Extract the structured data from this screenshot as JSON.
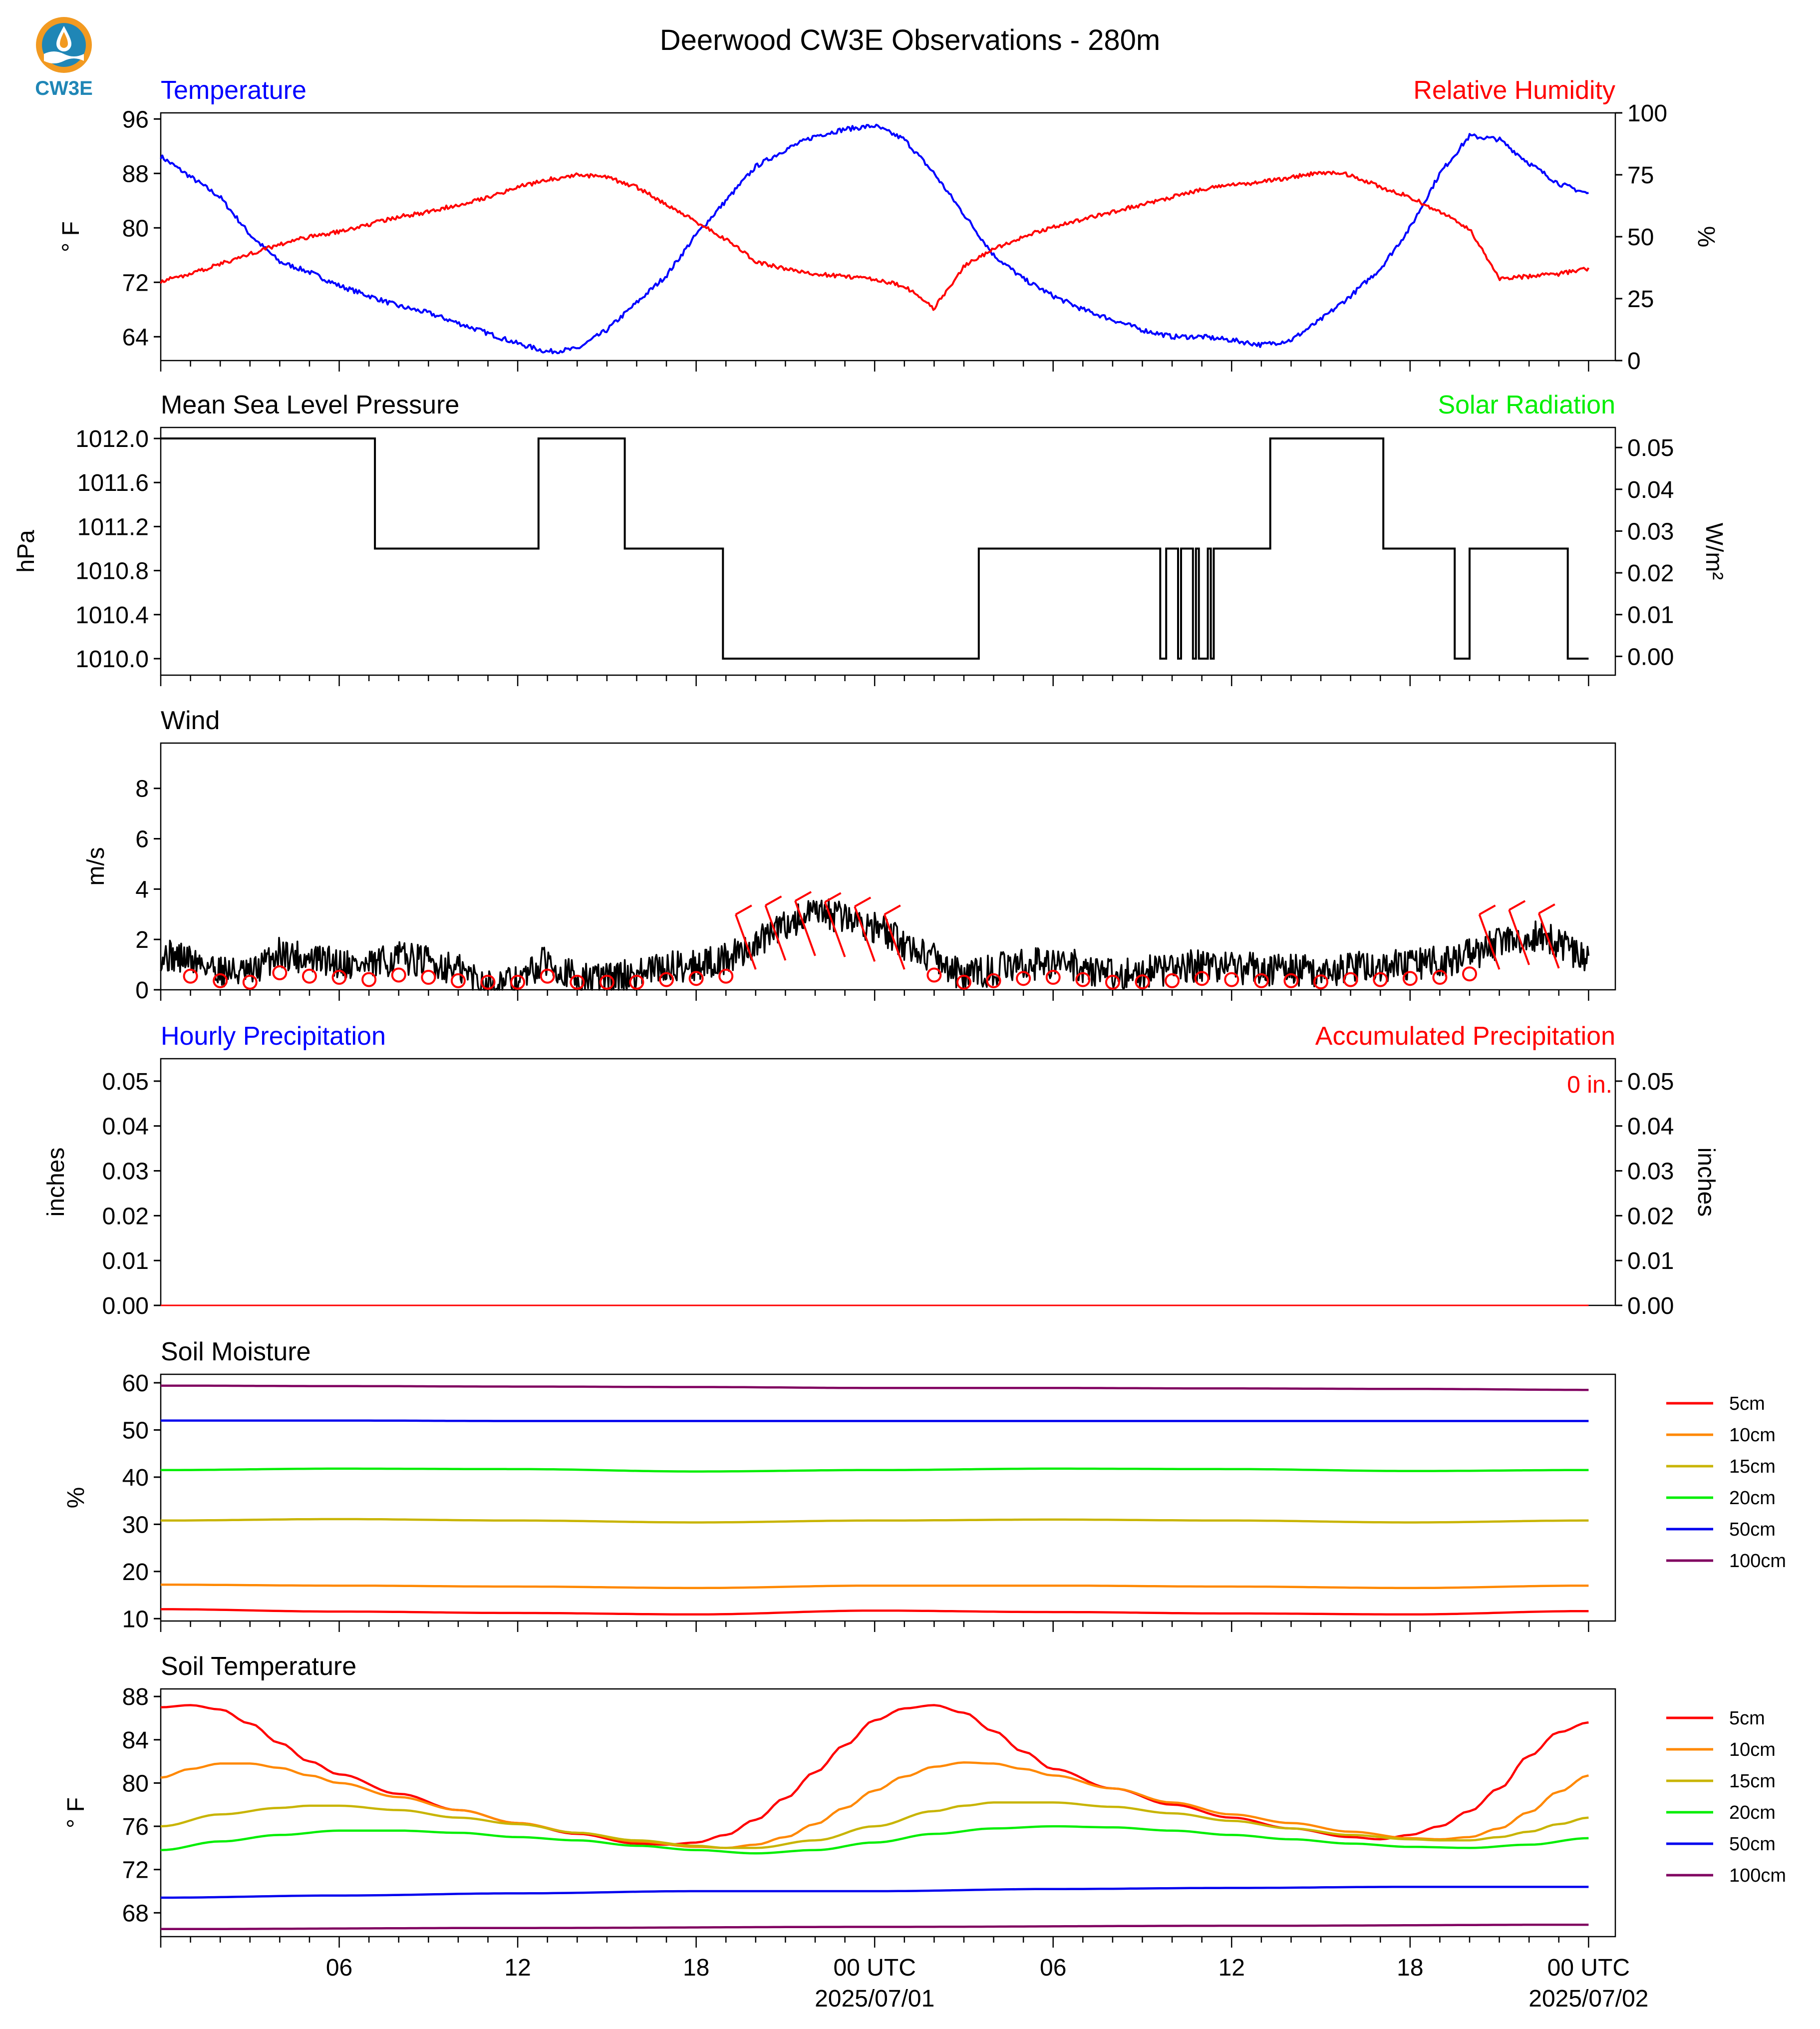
{
  "title": "Deerwood CW3E Observations - 280m",
  "logo_text": "CW3E",
  "colors": {
    "temp": "#0000ff",
    "rh": "#ff0000",
    "black": "#000000",
    "solar": "#00ee00"
  },
  "time_axis": {
    "tick_labels": [
      "06",
      "12",
      "18",
      "00 UTC",
      "06",
      "12",
      "18",
      "00 UTC"
    ],
    "date_labels": [
      "2025/07/01",
      "2025/07/02"
    ]
  },
  "chart_data": [
    {
      "type": "line",
      "title_left": "Temperature",
      "title_right": "Relative Humidity",
      "ylabel_left": "° F",
      "ylabel_right": "%",
      "yticks_left": [
        "96",
        "88",
        "80",
        "72",
        "64"
      ],
      "yticks_right": [
        "100",
        "75",
        "50",
        "25",
        "0"
      ],
      "ylim_left": [
        60.5,
        96.9
      ],
      "ylim_right": [
        0,
        100
      ],
      "series": [
        {
          "name": "Temperature",
          "axis": "left",
          "color": "#0000ff",
          "x_hours": [
            0,
            1,
            2,
            3,
            4,
            5,
            6,
            7,
            8,
            9,
            10,
            11,
            12,
            13,
            14,
            15,
            16,
            17,
            18,
            19,
            20,
            21,
            22,
            23,
            24,
            25,
            26,
            27,
            28,
            29,
            30,
            31,
            32,
            33,
            34,
            35,
            36,
            37,
            38,
            39,
            40,
            41,
            42,
            43,
            44,
            45,
            46,
            47,
            48
          ],
          "values": [
            90.5,
            87.5,
            84.5,
            79,
            75,
            73.5,
            71.5,
            70,
            68.5,
            67.5,
            66,
            64.5,
            63,
            61.8,
            62.2,
            65,
            69,
            73,
            79,
            84,
            89,
            91.5,
            93.5,
            94.5,
            95,
            93,
            88,
            82,
            76,
            72.5,
            70,
            68,
            66.5,
            65,
            64,
            64,
            63.5,
            62.8,
            63.5,
            66.5,
            70,
            74,
            80,
            88,
            93.5,
            93,
            89.5,
            86.5,
            85
          ]
        },
        {
          "name": "Relative Humidity",
          "axis": "right",
          "color": "#ff0000",
          "x_hours": [
            0,
            1,
            2,
            3,
            4,
            5,
            6,
            7,
            8,
            9,
            10,
            11,
            12,
            13,
            14,
            15,
            16,
            17,
            18,
            19,
            20,
            21,
            22,
            23,
            24,
            25,
            26,
            27,
            28,
            29,
            30,
            31,
            32,
            33,
            34,
            35,
            36,
            37,
            38,
            39,
            40,
            41,
            42,
            43,
            44,
            45,
            46,
            47,
            48
          ],
          "values": [
            32,
            35,
            39,
            43,
            47,
            50,
            52,
            55,
            58,
            60,
            63,
            66,
            70,
            73,
            75,
            74,
            70,
            63,
            56,
            49,
            40,
            37,
            35,
            34,
            33,
            30,
            21,
            38,
            45,
            50,
            54,
            57,
            60,
            63,
            66,
            69,
            71,
            72,
            74,
            76,
            75,
            70,
            66,
            60,
            53,
            33,
            34,
            35,
            37
          ]
        }
      ]
    },
    {
      "type": "line",
      "title_left": "Mean Sea Level Pressure",
      "title_right": "Solar Radiation",
      "ylabel_left": "hPa",
      "ylabel_right": "W/m²",
      "yticks_left": [
        "1012.0",
        "1011.6",
        "1011.2",
        "1010.8",
        "1010.4",
        "1010.0"
      ],
      "yticks_right": [
        "0.05",
        "0.04",
        "0.03",
        "0.02",
        "0.01",
        "0.00"
      ],
      "ylim_left": [
        1009.85,
        1012.1
      ],
      "ylim_right": [
        -0.0045,
        0.0548
      ],
      "series": [
        {
          "name": "Mean Sea Level Pressure",
          "axis": "left",
          "color": "#000000",
          "steps": [
            [
              0,
              1012
            ],
            [
              7.2,
              1011
            ],
            [
              12.7,
              1012
            ],
            [
              15.6,
              1011
            ],
            [
              18.9,
              1010
            ],
            [
              27.5,
              1011
            ],
            [
              33.6,
              1010
            ],
            [
              33.8,
              1011
            ],
            [
              34.2,
              1010
            ],
            [
              34.3,
              1011
            ],
            [
              34.7,
              1010
            ],
            [
              34.8,
              1011
            ],
            [
              34.9,
              1010
            ],
            [
              35.2,
              1011
            ],
            [
              35.3,
              1010
            ],
            [
              35.4,
              1011
            ],
            [
              37.3,
              1012
            ],
            [
              41.1,
              1011
            ],
            [
              43.5,
              1010
            ],
            [
              44,
              1011
            ],
            [
              47.3,
              1010
            ],
            [
              48,
              1010
            ]
          ]
        }
      ]
    },
    {
      "type": "line",
      "title_left": "Wind",
      "ylabel_left": "m/s",
      "yticks_left": [
        "8",
        "6",
        "4",
        "2",
        "0"
      ],
      "ylim_left": [
        0,
        9.8
      ],
      "series": [
        {
          "name": "Wind speed",
          "axis": "left",
          "color": "#000000",
          "x_hours": [
            0,
            1,
            2,
            3,
            4,
            5,
            6,
            7,
            8,
            9,
            10,
            11,
            12,
            13,
            14,
            15,
            16,
            17,
            18,
            19,
            20,
            21,
            22,
            23,
            24,
            25,
            26,
            27,
            28,
            29,
            30,
            31,
            32,
            33,
            34,
            35,
            36,
            37,
            38,
            39,
            40,
            41,
            42,
            43,
            44,
            45,
            46,
            47,
            48
          ],
          "values": [
            1.4,
            1.2,
            0.8,
            0.6,
            1.5,
            1.2,
            1.1,
            0.9,
            1.3,
            1.1,
            0.8,
            0.2,
            0.3,
            1.2,
            0.4,
            0.5,
            0.6,
            0.9,
            1.0,
            1.2,
            1.8,
            2.6,
            3.0,
            2.9,
            2.5,
            1.8,
            1.3,
            0.5,
            0.8,
            1.0,
            1.1,
            0.9,
            0.6,
            0.7,
            0.8,
            1.0,
            0.9,
            0.8,
            0.8,
            0.7,
            0.9,
            0.9,
            1.0,
            1.1,
            1.4,
            1.8,
            2.2,
            1.9,
            1.1
          ]
        }
      ]
    },
    {
      "type": "line",
      "title_left": "Hourly Precipitation",
      "title_right": "Accumulated Precipitation",
      "ylabel_left": "inches",
      "ylabel_right": "inches",
      "yticks_left": [
        "0.05",
        "0.04",
        "0.03",
        "0.02",
        "0.01",
        "0.00"
      ],
      "yticks_right": [
        "0.05",
        "0.04",
        "0.03",
        "0.02",
        "0.01",
        "0.00"
      ],
      "ylim_left": [
        0,
        0.055
      ],
      "accumulated_label": "0 in.",
      "series": [
        {
          "name": "Hourly Precipitation",
          "axis": "left",
          "color": "#0000ff",
          "x_hours": [
            0,
            48
          ],
          "values": [
            0,
            0
          ]
        },
        {
          "name": "Accumulated Precipitation",
          "axis": "right",
          "color": "#ff0000",
          "x_hours": [
            0,
            48
          ],
          "values": [
            0,
            0
          ]
        }
      ]
    },
    {
      "type": "line",
      "title_left": "Soil Moisture",
      "ylabel_left": "%",
      "yticks_left": [
        "60",
        "50",
        "40",
        "30",
        "20",
        "10"
      ],
      "ylim_left": [
        9.5,
        61.8
      ],
      "legend_position": "right",
      "series": [
        {
          "name": "5cm",
          "color": "#ff0000",
          "x_hours": [
            0,
            6,
            12,
            18,
            24,
            30,
            36,
            42,
            48
          ],
          "values": [
            12.0,
            11.5,
            11.2,
            10.9,
            11.7,
            11.4,
            11.1,
            10.9,
            11.6
          ]
        },
        {
          "name": "10cm",
          "color": "#ff8800",
          "x_hours": [
            0,
            6,
            12,
            18,
            24,
            30,
            36,
            42,
            48
          ],
          "values": [
            17.2,
            17.0,
            16.8,
            16.5,
            17.0,
            17.0,
            16.8,
            16.5,
            17.0
          ]
        },
        {
          "name": "15cm",
          "color": "#c8b400",
          "x_hours": [
            0,
            6,
            12,
            18,
            24,
            30,
            36,
            42,
            48
          ],
          "values": [
            30.8,
            31.1,
            30.8,
            30.4,
            30.8,
            31.0,
            30.8,
            30.4,
            30.8
          ]
        },
        {
          "name": "20cm",
          "color": "#00ee00",
          "x_hours": [
            0,
            6,
            12,
            18,
            24,
            30,
            36,
            42,
            48
          ],
          "values": [
            41.5,
            41.8,
            41.7,
            41.2,
            41.5,
            41.8,
            41.7,
            41.3,
            41.5
          ]
        },
        {
          "name": "50cm",
          "color": "#0000ee",
          "x_hours": [
            0,
            6,
            12,
            18,
            24,
            30,
            36,
            42,
            48
          ],
          "values": [
            52.0,
            52.0,
            51.9,
            51.9,
            51.9,
            51.9,
            51.9,
            51.9,
            51.9
          ]
        },
        {
          "name": "100cm",
          "color": "#800060",
          "x_hours": [
            0,
            6,
            12,
            18,
            24,
            30,
            36,
            42,
            48
          ],
          "values": [
            59.4,
            59.3,
            59.2,
            59.1,
            58.9,
            58.9,
            58.8,
            58.7,
            58.5
          ]
        }
      ]
    },
    {
      "type": "line",
      "title_left": "Soil Temperature",
      "ylabel_left": "° F",
      "yticks_left": [
        "88",
        "84",
        "80",
        "76",
        "72",
        "68"
      ],
      "ylim_left": [
        65.8,
        88.7
      ],
      "legend_position": "right",
      "series": [
        {
          "name": "5cm",
          "color": "#ff0000",
          "x_hours": [
            0,
            1,
            2,
            3,
            4,
            5,
            6,
            8,
            10,
            12,
            14,
            16,
            17,
            18,
            19,
            20,
            21,
            22,
            23,
            24,
            25,
            26,
            27,
            28,
            29,
            30,
            32,
            34,
            36,
            38,
            40,
            41,
            42,
            43,
            44,
            45,
            46,
            47,
            48
          ],
          "values": [
            87.0,
            87.2,
            86.8,
            85.5,
            83.7,
            82.0,
            80.8,
            79.0,
            77.5,
            76.3,
            75.3,
            74.4,
            74.3,
            74.5,
            75.2,
            76.6,
            78.6,
            81.0,
            83.5,
            85.8,
            86.9,
            87.2,
            86.5,
            84.8,
            82.9,
            81.3,
            79.5,
            78.0,
            76.8,
            75.8,
            75.0,
            74.8,
            75.2,
            76.0,
            77.4,
            79.5,
            82.5,
            84.7,
            85.6
          ]
        },
        {
          "name": "10cm",
          "color": "#ff8800",
          "x_hours": [
            0,
            1,
            2,
            3,
            4,
            5,
            6,
            8,
            10,
            12,
            14,
            16,
            18,
            19,
            20,
            21,
            22,
            23,
            24,
            25,
            26,
            27,
            28,
            29,
            30,
            32,
            34,
            36,
            38,
            40,
            42,
            43,
            44,
            45,
            46,
            47,
            48
          ],
          "values": [
            80.5,
            81.3,
            81.8,
            81.8,
            81.4,
            80.7,
            80.0,
            78.7,
            77.5,
            76.3,
            75.4,
            74.6,
            74.1,
            74.0,
            74.3,
            75.0,
            76.2,
            77.7,
            79.3,
            80.6,
            81.5,
            81.9,
            81.8,
            81.3,
            80.7,
            79.5,
            78.2,
            77.1,
            76.3,
            75.5,
            74.9,
            74.8,
            75.0,
            75.8,
            77.3,
            79.2,
            80.7
          ]
        },
        {
          "name": "15cm",
          "color": "#c8b400",
          "x_hours": [
            0,
            2,
            4,
            5,
            6,
            8,
            10,
            12,
            14,
            16,
            18,
            19,
            20,
            22,
            24,
            26,
            27,
            28,
            29,
            30,
            32,
            34,
            36,
            38,
            40,
            42,
            43,
            44,
            45,
            46,
            47,
            48
          ],
          "values": [
            76.0,
            77.1,
            77.7,
            77.9,
            77.9,
            77.5,
            76.8,
            76.2,
            75.4,
            74.7,
            74.2,
            74.0,
            74.0,
            74.7,
            76.0,
            77.4,
            77.9,
            78.2,
            78.2,
            78.2,
            77.8,
            77.2,
            76.5,
            75.8,
            75.2,
            74.8,
            74.7,
            74.7,
            75.0,
            75.5,
            76.2,
            76.8
          ]
        },
        {
          "name": "20cm",
          "color": "#00ee00",
          "x_hours": [
            0,
            2,
            4,
            6,
            8,
            10,
            12,
            14,
            16,
            18,
            20,
            22,
            24,
            26,
            28,
            30,
            32,
            34,
            36,
            38,
            40,
            42,
            44,
            46,
            48
          ],
          "values": [
            73.8,
            74.6,
            75.2,
            75.6,
            75.6,
            75.4,
            75.0,
            74.7,
            74.2,
            73.8,
            73.5,
            73.8,
            74.5,
            75.3,
            75.8,
            76.0,
            75.9,
            75.6,
            75.2,
            74.8,
            74.4,
            74.1,
            74.0,
            74.3,
            74.9
          ]
        },
        {
          "name": "50cm",
          "color": "#0000ee",
          "x_hours": [
            0,
            6,
            12,
            18,
            24,
            30,
            36,
            42,
            48
          ],
          "values": [
            69.4,
            69.6,
            69.8,
            70.0,
            70.0,
            70.2,
            70.3,
            70.4,
            70.4
          ]
        },
        {
          "name": "100cm",
          "color": "#800060",
          "x_hours": [
            0,
            12,
            24,
            36,
            48
          ],
          "values": [
            66.5,
            66.6,
            66.7,
            66.8,
            66.9
          ]
        }
      ]
    }
  ]
}
